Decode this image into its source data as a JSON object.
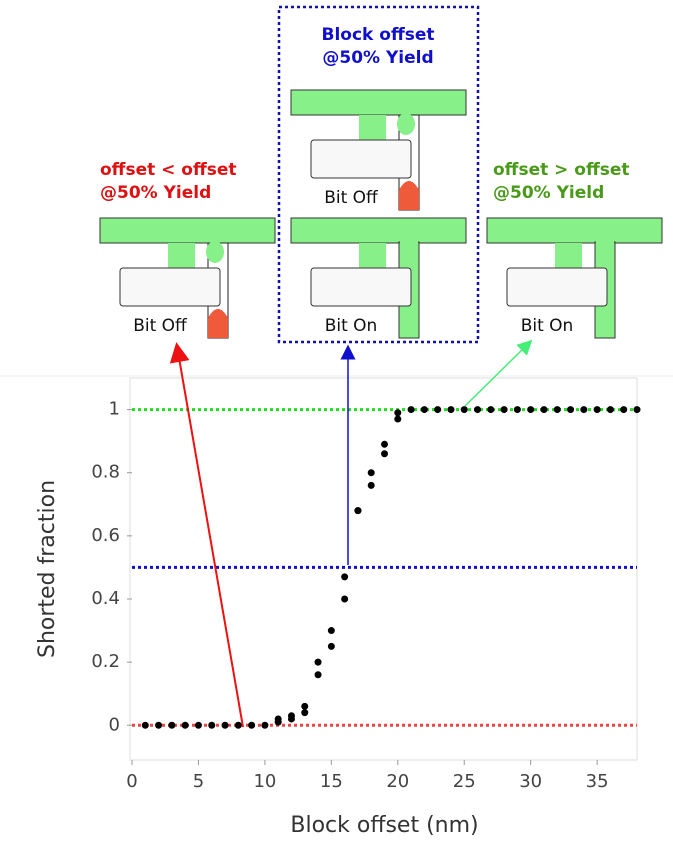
{
  "chart_data": {
    "type": "scatter",
    "x_label": "Block offset (nm)",
    "y_label": "Shorted fraction",
    "x": [
      1,
      2,
      3,
      4,
      5,
      6,
      7,
      8,
      9,
      10,
      11,
      11,
      12,
      12,
      13,
      13,
      14,
      14,
      15,
      15,
      16,
      16,
      17,
      17,
      18,
      18,
      19,
      19,
      20,
      20,
      21,
      22,
      23,
      24,
      25,
      26,
      27,
      28,
      29,
      30,
      31,
      32,
      33,
      34,
      35,
      36,
      37,
      38
    ],
    "values": [
      0,
      0,
      0,
      0,
      0,
      0,
      0,
      0,
      0,
      0,
      0.01,
      0.02,
      0.02,
      0.03,
      0.04,
      0.06,
      0.16,
      0.2,
      0.25,
      0.3,
      0.4,
      0.47,
      0.68,
      0.68,
      0.76,
      0.8,
      0.86,
      0.89,
      0.97,
      0.99,
      1,
      1,
      1,
      1,
      1,
      1,
      1,
      1,
      1,
      1,
      1,
      1,
      1,
      1,
      1,
      1,
      1,
      1
    ],
    "color": "#000000",
    "xlim": [
      0,
      38
    ],
    "ylim": [
      -0.11,
      1.1
    ],
    "xticks": [
      0,
      5,
      10,
      15,
      20,
      25,
      30,
      35
    ],
    "yticks": [
      0,
      0.2,
      0.4,
      0.6,
      0.8,
      1
    ],
    "reference_lines": [
      {
        "value": 1,
        "color": "#22dd22"
      },
      {
        "value": 0.5,
        "color": "#1010cc"
      },
      {
        "value": 0,
        "color": "#ee4444"
      }
    ]
  },
  "annotations": {
    "left": {
      "lines": [
        "offset < offset",
        "@50% Yield"
      ],
      "color": "#dd1111",
      "bits": [
        "Bit Off"
      ]
    },
    "center": {
      "lines": [
        "Block offset",
        "@50% Yield"
      ],
      "color": "#1010cc",
      "bits": [
        "Bit Off",
        "Bit On"
      ]
    },
    "right": {
      "lines": [
        "offset > offset",
        "@50% Yield"
      ],
      "color": "#4a9a1a",
      "bits": [
        "Bit On"
      ]
    }
  }
}
